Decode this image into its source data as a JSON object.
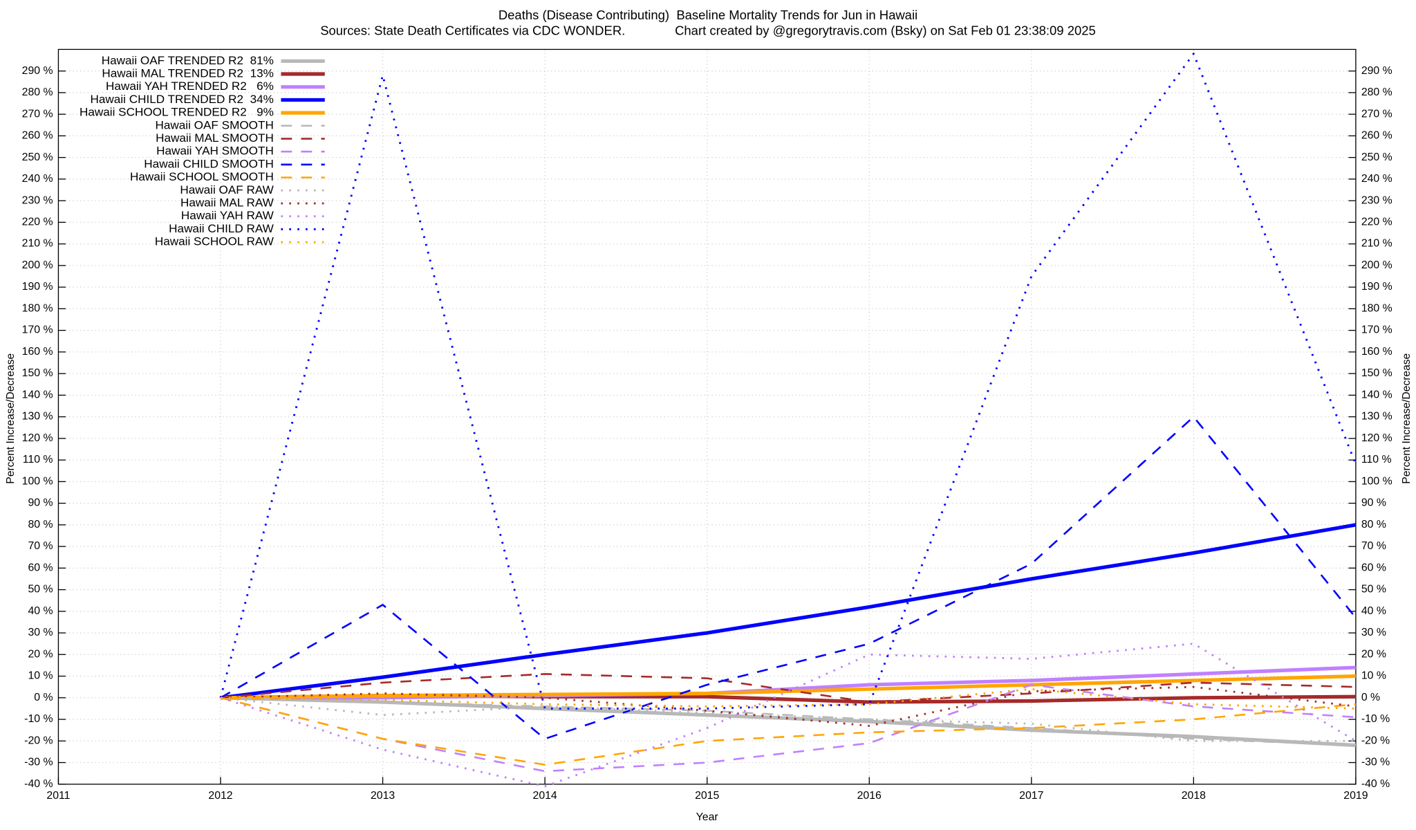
{
  "chart_data": {
    "type": "line",
    "title": "Deaths (Disease Contributing)  Baseline Mortality Trends for Jun in Hawaii",
    "subtitle": "Sources: State Death Certificates via CDC WONDER.              Chart created by @gregorytravis.com (Bsky) on Sat Feb 01 23:38:09 2025",
    "xlabel": "Year",
    "ylabel": "Percent Increase/Decrease",
    "y2label": "Percent Increase/Decrease",
    "grid": true,
    "legend": "top-left",
    "x": [
      2012,
      2013,
      2014,
      2015,
      2016,
      2017,
      2018,
      2019
    ],
    "xlim": [
      2011,
      2019
    ],
    "xticks": [
      2011,
      2012,
      2013,
      2014,
      2015,
      2016,
      2017,
      2018,
      2019
    ],
    "ylim": [
      -40,
      300
    ],
    "y2lim": [
      -40,
      300
    ],
    "yticks": [
      {
        "value": -40,
        "label": "-40 %"
      },
      {
        "value": -30,
        "label": "-30 %"
      },
      {
        "value": -20,
        "label": "-20 %"
      },
      {
        "value": -10,
        "label": "-10 %"
      },
      {
        "value": 0,
        "label": "0 %"
      },
      {
        "value": 10,
        "label": "10 %"
      },
      {
        "value": 20,
        "label": "20 %"
      },
      {
        "value": 30,
        "label": "30 %"
      },
      {
        "value": 40,
        "label": "40 %"
      },
      {
        "value": 50,
        "label": "50 %"
      },
      {
        "value": 60,
        "label": "60 %"
      },
      {
        "value": 70,
        "label": "70 %"
      },
      {
        "value": 80,
        "label": "80 %"
      },
      {
        "value": 90,
        "label": "90 %"
      },
      {
        "value": 100,
        "label": "100 %"
      },
      {
        "value": 110,
        "label": "110 %"
      },
      {
        "value": 120,
        "label": "120 %"
      },
      {
        "value": 130,
        "label": "130 %"
      },
      {
        "value": 140,
        "label": "140 %"
      },
      {
        "value": 150,
        "label": "150 %"
      },
      {
        "value": 160,
        "label": "160 %"
      },
      {
        "value": 170,
        "label": "170 %"
      },
      {
        "value": 180,
        "label": "180 %"
      },
      {
        "value": 190,
        "label": "190 %"
      },
      {
        "value": 200,
        "label": "200 %"
      },
      {
        "value": 210,
        "label": "210 %"
      },
      {
        "value": 220,
        "label": "220 %"
      },
      {
        "value": 230,
        "label": "230 %"
      },
      {
        "value": 240,
        "label": "240 %"
      },
      {
        "value": 250,
        "label": "250 %"
      },
      {
        "value": 260,
        "label": "260 %"
      },
      {
        "value": 270,
        "label": "270 %"
      },
      {
        "value": 280,
        "label": "280 %"
      },
      {
        "value": 290,
        "label": "290 %"
      }
    ],
    "y2ticks": [
      {
        "value": -40,
        "label": "-40 %"
      },
      {
        "value": -30,
        "label": "-30 %"
      },
      {
        "value": -20,
        "label": "-20 %"
      },
      {
        "value": -10,
        "label": "-10 %"
      },
      {
        "value": 0,
        "label": "0 %"
      },
      {
        "value": 10,
        "label": "10 %"
      },
      {
        "value": 20,
        "label": "20 %"
      },
      {
        "value": 30,
        "label": "30 %"
      },
      {
        "value": 40,
        "label": "40 %"
      },
      {
        "value": 50,
        "label": "50 %"
      },
      {
        "value": 60,
        "label": "60 %"
      },
      {
        "value": 70,
        "label": "70 %"
      },
      {
        "value": 80,
        "label": "80 %"
      },
      {
        "value": 90,
        "label": "90 %"
      },
      {
        "value": 100,
        "label": "100 %"
      },
      {
        "value": 110,
        "label": "110 %"
      },
      {
        "value": 120,
        "label": "120 %"
      },
      {
        "value": 130,
        "label": "130 %"
      },
      {
        "value": 140,
        "label": "140 %"
      },
      {
        "value": 150,
        "label": "150 %"
      },
      {
        "value": 160,
        "label": "160 %"
      },
      {
        "value": 170,
        "label": "170 %"
      },
      {
        "value": 180,
        "label": "180 %"
      },
      {
        "value": 190,
        "label": "190 %"
      },
      {
        "value": 200,
        "label": "200 %"
      },
      {
        "value": 210,
        "label": "210 %"
      },
      {
        "value": 220,
        "label": "220 %"
      },
      {
        "value": 230,
        "label": "230 %"
      },
      {
        "value": 240,
        "label": "240 %"
      },
      {
        "value": 250,
        "label": "250 %"
      },
      {
        "value": 260,
        "label": "260 %"
      },
      {
        "value": 270,
        "label": "270 %"
      },
      {
        "value": 280,
        "label": "280 %"
      },
      {
        "value": 290,
        "label": "290 %"
      }
    ],
    "series": [
      {
        "name": "Hawaii OAF TRENDED R2  81%",
        "color": "#b8b8b8",
        "dash": "solid",
        "values": [
          0,
          -2,
          -5,
          -8,
          -11,
          -15,
          -18,
          -22
        ]
      },
      {
        "name": "Hawaii MAL TRENDED R2  13%",
        "color": "#a52a2a",
        "dash": "solid",
        "values": [
          0,
          1,
          0.5,
          0.5,
          -2,
          -1.5,
          0,
          0.5
        ]
      },
      {
        "name": "Hawaii YAH TRENDED R2   6%",
        "color": "#c080ff",
        "dash": "solid",
        "values": [
          0,
          0,
          1,
          2,
          6,
          8,
          11,
          14
        ]
      },
      {
        "name": "Hawaii CHILD TRENDED R2  34%",
        "color": "#0000ff",
        "dash": "solid",
        "values": [
          0,
          9.5,
          20,
          30,
          42,
          55,
          67,
          80
        ]
      },
      {
        "name": "Hawaii SCHOOL TRENDED R2   9%",
        "color": "#ffa500",
        "dash": "solid",
        "values": [
          0,
          1,
          1.5,
          2,
          4,
          6,
          8,
          10
        ]
      },
      {
        "name": "Hawaii OAF SMOOTH",
        "color": "#b8b8b8",
        "dash": "dashed",
        "values": [
          0,
          -2,
          -4,
          -6,
          -10,
          -14,
          -19,
          -22
        ]
      },
      {
        "name": "Hawaii MAL SMOOTH",
        "color": "#a52a2a",
        "dash": "dashed",
        "values": [
          0,
          7,
          11,
          9,
          -2,
          2,
          7,
          5
        ]
      },
      {
        "name": "Hawaii YAH SMOOTH",
        "color": "#c080ff",
        "dash": "dashed",
        "values": [
          0,
          -19,
          -34,
          -30,
          -21,
          6,
          -4,
          -9
        ]
      },
      {
        "name": "Hawaii CHILD SMOOTH",
        "color": "#0000ff",
        "dash": "dashed",
        "values": [
          0,
          43,
          -19,
          6,
          25,
          62,
          130,
          37
        ]
      },
      {
        "name": "Hawaii SCHOOL SMOOTH",
        "color": "#ffa500",
        "dash": "dashed",
        "values": [
          0,
          -19,
          -31,
          -20,
          -16,
          -14,
          -10,
          -3
        ]
      },
      {
        "name": "Hawaii OAF RAW",
        "color": "#b8b8b8",
        "dash": "dotted",
        "values": [
          0,
          -8,
          -4,
          -7,
          -10,
          -12,
          -20,
          -20
        ]
      },
      {
        "name": "Hawaii MAL RAW",
        "color": "#a52a2a",
        "dash": "dotted",
        "values": [
          0,
          2,
          0,
          -6,
          -13,
          3,
          5,
          -4
        ]
      },
      {
        "name": "Hawaii YAH RAW",
        "color": "#c080ff",
        "dash": "dotted",
        "values": [
          0,
          -24,
          -41,
          -14,
          20,
          18,
          25,
          -20
        ]
      },
      {
        "name": "Hawaii CHILD RAW",
        "color": "#0000ff",
        "dash": "dotted",
        "values": [
          0,
          288,
          -5,
          -5,
          -3,
          195,
          298,
          108
        ]
      },
      {
        "name": "Hawaii SCHOOL RAW",
        "color": "#ffa500",
        "dash": "dotted",
        "values": [
          0,
          -1,
          -3,
          -4,
          -3,
          4,
          -3,
          -5
        ]
      }
    ]
  }
}
